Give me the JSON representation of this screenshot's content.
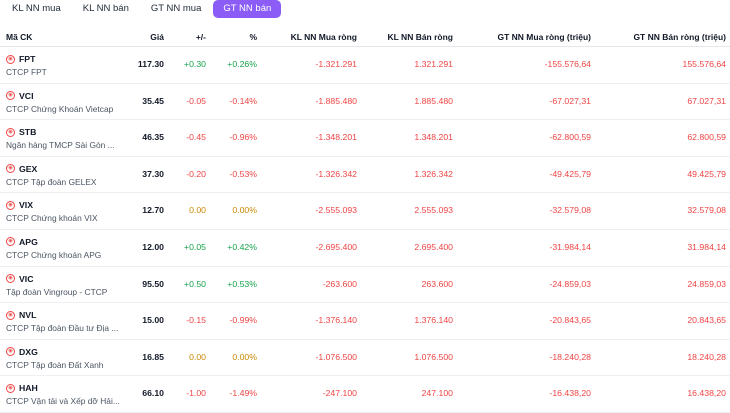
{
  "tabs": [
    {
      "label": "KL NN mua",
      "active": false
    },
    {
      "label": "KL NN bán",
      "active": false
    },
    {
      "label": "GT NN mua",
      "active": false
    },
    {
      "label": "GT NN bán",
      "active": true
    }
  ],
  "headers": {
    "code": "Mã CK",
    "price": "Giá",
    "change": "+/-",
    "percent": "%",
    "net_buy_vol": "KL NN Mua ròng",
    "net_sell_vol": "KL NN Bán ròng",
    "net_buy_val": "GT NN Mua ròng (triệu)",
    "net_sell_val": "GT NN Bán ròng (triệu)"
  },
  "rows": [
    {
      "code": "FPT",
      "name": "CTCP FPT",
      "price": "117.30",
      "change": "+0.30",
      "percent": "+0.26%",
      "trend": "up",
      "net_buy_vol": "-1.321.291",
      "net_sell_vol": "1.321.291",
      "net_buy_val": "-155.576,64",
      "net_sell_val": "155.576,64"
    },
    {
      "code": "VCI",
      "name": "CTCP Chứng Khoán Vietcap",
      "price": "35.45",
      "change": "-0.05",
      "percent": "-0.14%",
      "trend": "down",
      "net_buy_vol": "-1.885.480",
      "net_sell_vol": "1.885.480",
      "net_buy_val": "-67.027,31",
      "net_sell_val": "67.027,31"
    },
    {
      "code": "STB",
      "name": "Ngân hàng TMCP Sài Gòn ...",
      "price": "46.35",
      "change": "-0.45",
      "percent": "-0.96%",
      "trend": "down",
      "net_buy_vol": "-1.348.201",
      "net_sell_vol": "1.348.201",
      "net_buy_val": "-62.800,59",
      "net_sell_val": "62.800,59"
    },
    {
      "code": "GEX",
      "name": "CTCP Tập đoàn GELEX",
      "price": "37.30",
      "change": "-0.20",
      "percent": "-0.53%",
      "trend": "down",
      "net_buy_vol": "-1.326.342",
      "net_sell_vol": "1.326.342",
      "net_buy_val": "-49.425,79",
      "net_sell_val": "49.425,79"
    },
    {
      "code": "VIX",
      "name": "CTCP Chứng khoán VIX",
      "price": "12.70",
      "change": "0.00",
      "percent": "0.00%",
      "trend": "flat",
      "net_buy_vol": "-2.555.093",
      "net_sell_vol": "2.555.093",
      "net_buy_val": "-32.579,08",
      "net_sell_val": "32.579,08"
    },
    {
      "code": "APG",
      "name": "CTCP Chứng khoán APG",
      "price": "12.00",
      "change": "+0.05",
      "percent": "+0.42%",
      "trend": "up",
      "net_buy_vol": "-2.695.400",
      "net_sell_vol": "2.695.400",
      "net_buy_val": "-31.984,14",
      "net_sell_val": "31.984,14"
    },
    {
      "code": "VIC",
      "name": "Tập đoàn Vingroup - CTCP",
      "price": "95.50",
      "change": "+0.50",
      "percent": "+0.53%",
      "trend": "up",
      "net_buy_vol": "-263.600",
      "net_sell_vol": "263.600",
      "net_buy_val": "-24.859,03",
      "net_sell_val": "24.859,03"
    },
    {
      "code": "NVL",
      "name": "CTCP Tập đoàn Đầu tư Địa ...",
      "price": "15.00",
      "change": "-0.15",
      "percent": "-0.99%",
      "trend": "down",
      "net_buy_vol": "-1.376.140",
      "net_sell_vol": "1.376.140",
      "net_buy_val": "-20.843,65",
      "net_sell_val": "20.843,65"
    },
    {
      "code": "DXG",
      "name": "CTCP Tập đoàn Đất Xanh",
      "price": "16.85",
      "change": "0.00",
      "percent": "0.00%",
      "trend": "flat",
      "net_buy_vol": "-1.076.500",
      "net_sell_vol": "1.076.500",
      "net_buy_val": "-18.240,28",
      "net_sell_val": "18.240,28"
    },
    {
      "code": "HAH",
      "name": "CTCP Vận tải và Xếp dỡ Hải...",
      "price": "66.10",
      "change": "-1.00",
      "percent": "-1.49%",
      "trend": "down",
      "net_buy_vol": "-247.100",
      "net_sell_vol": "247.100",
      "net_buy_val": "-16.438,20",
      "net_sell_val": "16.438,20"
    }
  ]
}
